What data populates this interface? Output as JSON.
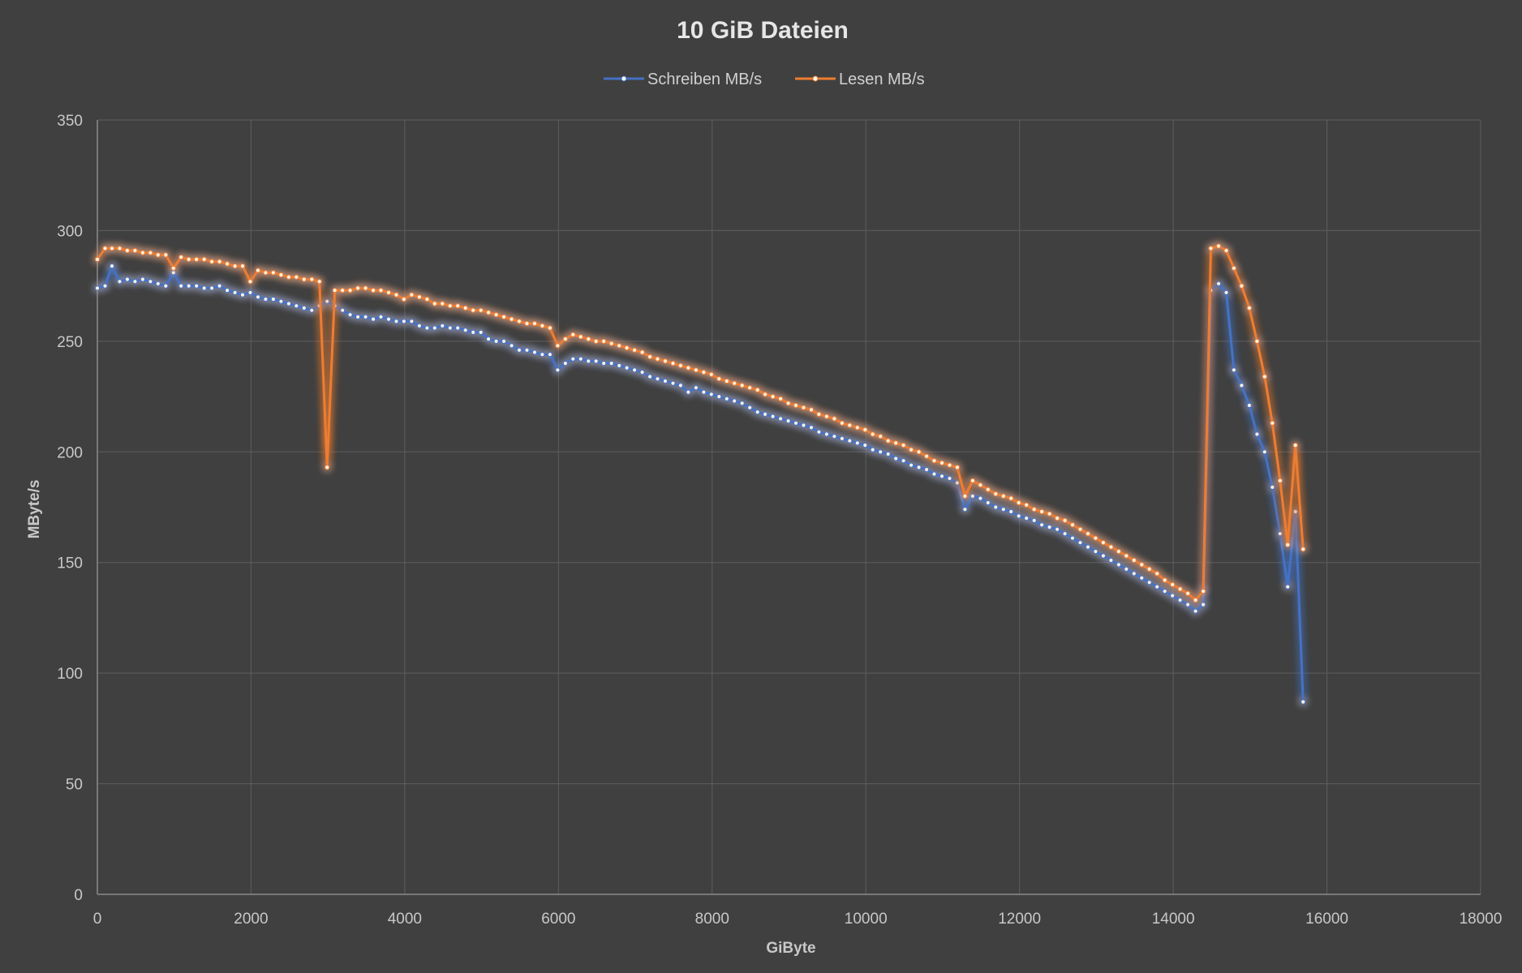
{
  "chart_data": {
    "type": "line",
    "title": "10 GiB Dateien",
    "xlabel": "GiByte",
    "ylabel": "MByte/s",
    "xlim": [
      0,
      18000
    ],
    "ylim": [
      0,
      350
    ],
    "x_ticks": [
      0,
      2000,
      4000,
      6000,
      8000,
      10000,
      12000,
      14000,
      16000,
      18000
    ],
    "y_ticks": [
      0,
      50,
      100,
      150,
      200,
      250,
      300,
      350
    ],
    "grid": true,
    "legend_position": "top",
    "series": [
      {
        "name": "Schreiben MB/s",
        "color": "#4472c4",
        "points": [
          [
            0,
            274
          ],
          [
            100,
            275
          ],
          [
            190,
            284
          ],
          [
            290,
            277
          ],
          [
            390,
            278
          ],
          [
            490,
            277
          ],
          [
            590,
            278
          ],
          [
            690,
            277
          ],
          [
            790,
            276
          ],
          [
            890,
            275
          ],
          [
            990,
            281
          ],
          [
            1090,
            275
          ],
          [
            1190,
            275
          ],
          [
            1290,
            275
          ],
          [
            1390,
            274
          ],
          [
            1490,
            274
          ],
          [
            1590,
            275
          ],
          [
            1690,
            273
          ],
          [
            1790,
            272
          ],
          [
            1890,
            271
          ],
          [
            1990,
            272
          ],
          [
            2090,
            270
          ],
          [
            2190,
            269
          ],
          [
            2290,
            269
          ],
          [
            2390,
            268
          ],
          [
            2490,
            267
          ],
          [
            2590,
            266
          ],
          [
            2690,
            265
          ],
          [
            2790,
            264
          ],
          [
            2890,
            266
          ],
          [
            2990,
            268
          ],
          [
            3090,
            266
          ],
          [
            3190,
            264
          ],
          [
            3290,
            262
          ],
          [
            3390,
            261
          ],
          [
            3490,
            261
          ],
          [
            3590,
            260
          ],
          [
            3690,
            261
          ],
          [
            3790,
            260
          ],
          [
            3890,
            259
          ],
          [
            3990,
            259
          ],
          [
            4090,
            259
          ],
          [
            4190,
            257
          ],
          [
            4290,
            256
          ],
          [
            4390,
            256
          ],
          [
            4490,
            257
          ],
          [
            4590,
            256
          ],
          [
            4690,
            256
          ],
          [
            4790,
            255
          ],
          [
            4890,
            254
          ],
          [
            4990,
            254
          ],
          [
            5090,
            251
          ],
          [
            5190,
            250
          ],
          [
            5290,
            250
          ],
          [
            5390,
            248
          ],
          [
            5490,
            246
          ],
          [
            5590,
            246
          ],
          [
            5690,
            245
          ],
          [
            5790,
            244
          ],
          [
            5890,
            244
          ],
          [
            5990,
            237
          ],
          [
            6090,
            240
          ],
          [
            6190,
            242
          ],
          [
            6290,
            242
          ],
          [
            6390,
            241
          ],
          [
            6490,
            241
          ],
          [
            6590,
            240
          ],
          [
            6690,
            240
          ],
          [
            6790,
            239
          ],
          [
            6890,
            238
          ],
          [
            6990,
            237
          ],
          [
            7090,
            236
          ],
          [
            7190,
            234
          ],
          [
            7290,
            233
          ],
          [
            7390,
            232
          ],
          [
            7490,
            231
          ],
          [
            7590,
            230
          ],
          [
            7690,
            227
          ],
          [
            7790,
            229
          ],
          [
            7890,
            227
          ],
          [
            7990,
            226
          ],
          [
            8090,
            225
          ],
          [
            8190,
            224
          ],
          [
            8290,
            223
          ],
          [
            8390,
            222
          ],
          [
            8490,
            220
          ],
          [
            8590,
            218
          ],
          [
            8690,
            217
          ],
          [
            8790,
            216
          ],
          [
            8890,
            215
          ],
          [
            8990,
            214
          ],
          [
            9090,
            213
          ],
          [
            9190,
            212
          ],
          [
            9290,
            211
          ],
          [
            9390,
            209
          ],
          [
            9490,
            208
          ],
          [
            9590,
            207
          ],
          [
            9690,
            206
          ],
          [
            9790,
            205
          ],
          [
            9890,
            204
          ],
          [
            9990,
            203
          ],
          [
            10090,
            201
          ],
          [
            10190,
            200
          ],
          [
            10290,
            199
          ],
          [
            10390,
            197
          ],
          [
            10490,
            196
          ],
          [
            10590,
            194
          ],
          [
            10690,
            193
          ],
          [
            10790,
            192
          ],
          [
            10890,
            190
          ],
          [
            10990,
            189
          ],
          [
            11090,
            188
          ],
          [
            11190,
            186
          ],
          [
            11290,
            174
          ],
          [
            11390,
            180
          ],
          [
            11490,
            179
          ],
          [
            11590,
            177
          ],
          [
            11690,
            175
          ],
          [
            11790,
            174
          ],
          [
            11890,
            173
          ],
          [
            11990,
            171
          ],
          [
            12090,
            170
          ],
          [
            12190,
            169
          ],
          [
            12290,
            167
          ],
          [
            12390,
            166
          ],
          [
            12490,
            165
          ],
          [
            12590,
            163
          ],
          [
            12690,
            161
          ],
          [
            12790,
            159
          ],
          [
            12890,
            157
          ],
          [
            12990,
            155
          ],
          [
            13090,
            153
          ],
          [
            13190,
            151
          ],
          [
            13290,
            149
          ],
          [
            13390,
            147
          ],
          [
            13490,
            145
          ],
          [
            13590,
            143
          ],
          [
            13690,
            141
          ],
          [
            13790,
            139
          ],
          [
            13890,
            137
          ],
          [
            13990,
            135
          ],
          [
            14090,
            133
          ],
          [
            14190,
            131
          ],
          [
            14290,
            128
          ],
          [
            14390,
            131
          ],
          [
            14490,
            273
          ],
          [
            14590,
            276
          ],
          [
            14690,
            272
          ],
          [
            14790,
            237
          ],
          [
            14890,
            230
          ],
          [
            14990,
            221
          ],
          [
            15090,
            208
          ],
          [
            15190,
            200
          ],
          [
            15290,
            184
          ],
          [
            15390,
            163
          ],
          [
            15490,
            139
          ],
          [
            15590,
            173
          ],
          [
            15690,
            87
          ]
        ]
      },
      {
        "name": "Lesen MB/s",
        "color": "#ed7d31",
        "points": [
          [
            0,
            287
          ],
          [
            100,
            292
          ],
          [
            190,
            292
          ],
          [
            290,
            292
          ],
          [
            390,
            291
          ],
          [
            490,
            291
          ],
          [
            590,
            290
          ],
          [
            690,
            290
          ],
          [
            790,
            289
          ],
          [
            890,
            289
          ],
          [
            990,
            283
          ],
          [
            1090,
            288
          ],
          [
            1190,
            287
          ],
          [
            1290,
            287
          ],
          [
            1390,
            287
          ],
          [
            1490,
            286
          ],
          [
            1590,
            286
          ],
          [
            1690,
            285
          ],
          [
            1790,
            284
          ],
          [
            1890,
            284
          ],
          [
            1990,
            277
          ],
          [
            2090,
            282
          ],
          [
            2190,
            281
          ],
          [
            2290,
            281
          ],
          [
            2390,
            280
          ],
          [
            2490,
            279
          ],
          [
            2590,
            279
          ],
          [
            2690,
            278
          ],
          [
            2790,
            278
          ],
          [
            2890,
            277
          ],
          [
            2990,
            193
          ],
          [
            3090,
            273
          ],
          [
            3190,
            273
          ],
          [
            3290,
            273
          ],
          [
            3390,
            274
          ],
          [
            3490,
            274
          ],
          [
            3590,
            273
          ],
          [
            3690,
            273
          ],
          [
            3790,
            272
          ],
          [
            3890,
            271
          ],
          [
            3990,
            269
          ],
          [
            4090,
            271
          ],
          [
            4190,
            270
          ],
          [
            4290,
            269
          ],
          [
            4390,
            267
          ],
          [
            4490,
            267
          ],
          [
            4590,
            266
          ],
          [
            4690,
            266
          ],
          [
            4790,
            265
          ],
          [
            4890,
            264
          ],
          [
            4990,
            264
          ],
          [
            5090,
            263
          ],
          [
            5190,
            262
          ],
          [
            5290,
            261
          ],
          [
            5390,
            260
          ],
          [
            5490,
            259
          ],
          [
            5590,
            258
          ],
          [
            5690,
            258
          ],
          [
            5790,
            257
          ],
          [
            5890,
            256
          ],
          [
            5990,
            248
          ],
          [
            6090,
            251
          ],
          [
            6190,
            253
          ],
          [
            6290,
            252
          ],
          [
            6390,
            251
          ],
          [
            6490,
            250
          ],
          [
            6590,
            250
          ],
          [
            6690,
            249
          ],
          [
            6790,
            248
          ],
          [
            6890,
            247
          ],
          [
            6990,
            246
          ],
          [
            7090,
            245
          ],
          [
            7190,
            243
          ],
          [
            7290,
            242
          ],
          [
            7390,
            241
          ],
          [
            7490,
            240
          ],
          [
            7590,
            239
          ],
          [
            7690,
            238
          ],
          [
            7790,
            237
          ],
          [
            7890,
            236
          ],
          [
            7990,
            235
          ],
          [
            8090,
            233
          ],
          [
            8190,
            232
          ],
          [
            8290,
            231
          ],
          [
            8390,
            230
          ],
          [
            8490,
            229
          ],
          [
            8590,
            228
          ],
          [
            8690,
            226
          ],
          [
            8790,
            225
          ],
          [
            8890,
            224
          ],
          [
            8990,
            222
          ],
          [
            9090,
            221
          ],
          [
            9190,
            220
          ],
          [
            9290,
            219
          ],
          [
            9390,
            217
          ],
          [
            9490,
            216
          ],
          [
            9590,
            215
          ],
          [
            9690,
            213
          ],
          [
            9790,
            212
          ],
          [
            9890,
            211
          ],
          [
            9990,
            210
          ],
          [
            10090,
            208
          ],
          [
            10190,
            207
          ],
          [
            10290,
            205
          ],
          [
            10390,
            204
          ],
          [
            10490,
            203
          ],
          [
            10590,
            201
          ],
          [
            10690,
            200
          ],
          [
            10790,
            198
          ],
          [
            10890,
            196
          ],
          [
            10990,
            195
          ],
          [
            11090,
            194
          ],
          [
            11190,
            193
          ],
          [
            11290,
            180
          ],
          [
            11390,
            187
          ],
          [
            11490,
            185
          ],
          [
            11590,
            183
          ],
          [
            11690,
            181
          ],
          [
            11790,
            180
          ],
          [
            11890,
            179
          ],
          [
            11990,
            177
          ],
          [
            12090,
            176
          ],
          [
            12190,
            174
          ],
          [
            12290,
            173
          ],
          [
            12390,
            172
          ],
          [
            12490,
            170
          ],
          [
            12590,
            169
          ],
          [
            12690,
            167
          ],
          [
            12790,
            165
          ],
          [
            12890,
            163
          ],
          [
            12990,
            161
          ],
          [
            13090,
            159
          ],
          [
            13190,
            157
          ],
          [
            13290,
            155
          ],
          [
            13390,
            153
          ],
          [
            13490,
            151
          ],
          [
            13590,
            149
          ],
          [
            13690,
            147
          ],
          [
            13790,
            145
          ],
          [
            13890,
            142
          ],
          [
            13990,
            140
          ],
          [
            14090,
            138
          ],
          [
            14190,
            136
          ],
          [
            14290,
            133
          ],
          [
            14390,
            137
          ],
          [
            14490,
            292
          ],
          [
            14590,
            293
          ],
          [
            14690,
            291
          ],
          [
            14790,
            283
          ],
          [
            14890,
            275
          ],
          [
            14990,
            265
          ],
          [
            15090,
            250
          ],
          [
            15190,
            234
          ],
          [
            15290,
            213
          ],
          [
            15390,
            187
          ],
          [
            15490,
            158
          ],
          [
            15590,
            203
          ],
          [
            15690,
            156
          ]
        ]
      }
    ]
  }
}
